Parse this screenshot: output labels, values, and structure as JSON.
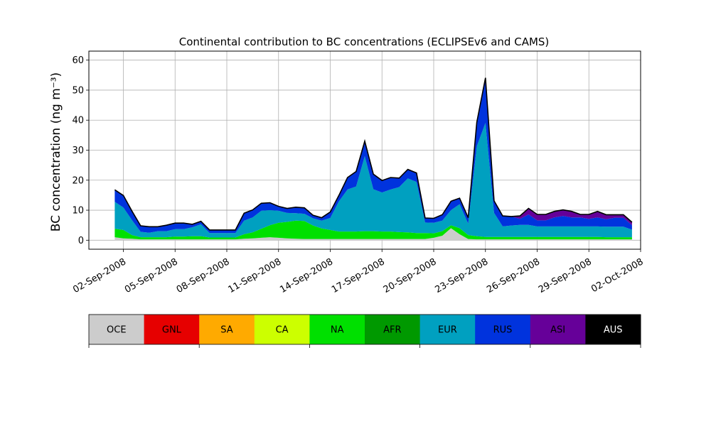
{
  "chart_data": {
    "type": "area",
    "title": "Continental contribution to BC concentrations (ECLIPSEv6 and CAMS)",
    "ylabel": "BC concentration (ng m⁻³)",
    "xlabel": "",
    "ylim": [
      -3,
      63
    ],
    "xlim": [
      "2008-08-31",
      "2008-10-02"
    ],
    "yticks": [
      0,
      10,
      20,
      30,
      40,
      50,
      60
    ],
    "xticks": [
      "02-Sep-2008",
      "05-Sep-2008",
      "08-Sep-2008",
      "11-Sep-2008",
      "14-Sep-2008",
      "17-Sep-2008",
      "20-Sep-2008",
      "23-Sep-2008",
      "26-Sep-2008",
      "29-Sep-2008",
      "02-Oct-2008"
    ],
    "xtick_dates": [
      "2008-09-02",
      "2008-09-05",
      "2008-09-08",
      "2008-09-11",
      "2008-09-14",
      "2008-09-17",
      "2008-09-20",
      "2008-09-23",
      "2008-09-26",
      "2008-09-29",
      "2008-10-02"
    ],
    "grid": true,
    "x": [
      "2008-09-01 12:00",
      "2008-09-02 00:00",
      "2008-09-02 12:00",
      "2008-09-03 00:00",
      "2008-09-03 12:00",
      "2008-09-04 00:00",
      "2008-09-04 12:00",
      "2008-09-05 00:00",
      "2008-09-05 12:00",
      "2008-09-06 00:00",
      "2008-09-06 12:00",
      "2008-09-07 00:00",
      "2008-09-07 12:00",
      "2008-09-08 00:00",
      "2008-09-08 12:00",
      "2008-09-09 00:00",
      "2008-09-09 12:00",
      "2008-09-10 00:00",
      "2008-09-10 12:00",
      "2008-09-11 00:00",
      "2008-09-11 12:00",
      "2008-09-12 00:00",
      "2008-09-12 12:00",
      "2008-09-13 00:00",
      "2008-09-13 12:00",
      "2008-09-14 00:00",
      "2008-09-14 12:00",
      "2008-09-15 00:00",
      "2008-09-15 12:00",
      "2008-09-16 00:00",
      "2008-09-16 12:00",
      "2008-09-17 00:00",
      "2008-09-17 12:00",
      "2008-09-18 00:00",
      "2008-09-18 12:00",
      "2008-09-19 00:00",
      "2008-09-19 12:00",
      "2008-09-20 00:00",
      "2008-09-20 12:00",
      "2008-09-21 00:00",
      "2008-09-21 12:00",
      "2008-09-22 00:00",
      "2008-09-22 12:00",
      "2008-09-23 00:00",
      "2008-09-23 12:00",
      "2008-09-24 00:00",
      "2008-09-24 12:00",
      "2008-09-25 00:00",
      "2008-09-25 12:00",
      "2008-09-26 00:00",
      "2008-09-26 12:00",
      "2008-09-27 00:00",
      "2008-09-27 12:00",
      "2008-09-28 00:00",
      "2008-09-28 12:00",
      "2008-09-29 00:00",
      "2008-09-29 12:00",
      "2008-09-30 00:00",
      "2008-09-30 12:00",
      "2008-10-01 00:00",
      "2008-10-01 12:00"
    ],
    "series": [
      {
        "name": "OCE",
        "color": "#cccccc",
        "values": [
          1.0,
          0.6,
          0.5,
          0.3,
          0.3,
          0.3,
          0.3,
          0.3,
          0.3,
          0.3,
          0.3,
          0.3,
          0.3,
          0.3,
          0.3,
          0.5,
          0.6,
          0.8,
          1.0,
          0.8,
          0.6,
          0.5,
          0.4,
          0.4,
          0.4,
          0.4,
          0.4,
          0.4,
          0.4,
          0.4,
          0.4,
          0.4,
          0.4,
          0.4,
          0.4,
          0.4,
          0.4,
          0.8,
          1.5,
          4.0,
          2.0,
          0.4,
          0.3,
          0.3,
          0.3,
          0.3,
          0.3,
          0.3,
          0.3,
          0.3,
          0.3,
          0.3,
          0.3,
          0.3,
          0.3,
          0.3,
          0.3,
          0.3,
          0.3,
          0.3,
          0.3
        ]
      },
      {
        "name": "GNL",
        "color": "#e60000",
        "values": [
          0,
          0,
          0,
          0,
          0,
          0,
          0,
          0,
          0,
          0,
          0,
          0,
          0,
          0,
          0,
          0,
          0,
          0,
          0,
          0,
          0,
          0,
          0,
          0,
          0,
          0,
          0,
          0,
          0,
          0,
          0,
          0,
          0,
          0,
          0,
          0,
          0,
          0,
          0,
          0,
          0,
          0,
          0,
          0,
          0,
          0,
          0,
          0,
          0,
          0,
          0,
          0,
          0,
          0,
          0,
          0,
          0,
          0,
          0,
          0,
          0
        ]
      },
      {
        "name": "SA",
        "color": "#ffaa00",
        "values": [
          0,
          0,
          0,
          0,
          0,
          0,
          0,
          0,
          0,
          0,
          0,
          0,
          0,
          0,
          0,
          0,
          0,
          0,
          0,
          0,
          0,
          0,
          0,
          0,
          0,
          0,
          0,
          0,
          0,
          0,
          0,
          0,
          0,
          0,
          0,
          0,
          0,
          0,
          0,
          0,
          0,
          0,
          0,
          0,
          0,
          0,
          0,
          0,
          0,
          0,
          0,
          0,
          0,
          0,
          0,
          0,
          0,
          0,
          0,
          0,
          0
        ]
      },
      {
        "name": "CA",
        "color": "#ccff00",
        "values": [
          0,
          0,
          0,
          0,
          0,
          0,
          0,
          0,
          0,
          0,
          0,
          0,
          0,
          0,
          0,
          0,
          0,
          0,
          0,
          0,
          0,
          0,
          0,
          0,
          0,
          0,
          0,
          0,
          0,
          0,
          0,
          0,
          0,
          0,
          0,
          0,
          0,
          0,
          0,
          0,
          0,
          0,
          0,
          0,
          0,
          0,
          0,
          0,
          0,
          0,
          0,
          0,
          0,
          0,
          0,
          0,
          0,
          0,
          0,
          0,
          0
        ]
      },
      {
        "name": "NA",
        "color": "#00e000",
        "values": [
          2.8,
          2.8,
          1.2,
          0.7,
          0.7,
          0.7,
          0.7,
          0.9,
          0.9,
          1.0,
          1.0,
          0.6,
          0.6,
          0.6,
          0.6,
          1.5,
          2.0,
          3.0,
          4.0,
          5.0,
          5.5,
          6.0,
          6.0,
          4.5,
          3.5,
          3.0,
          2.5,
          2.5,
          2.5,
          2.6,
          2.6,
          2.5,
          2.5,
          2.3,
          2.2,
          2.0,
          2.0,
          1.5,
          1.5,
          1.0,
          2.0,
          1.3,
          1.0,
          0.8,
          0.8,
          0.8,
          0.8,
          0.8,
          0.8,
          0.8,
          0.8,
          0.8,
          0.8,
          0.8,
          0.8,
          0.8,
          0.8,
          0.7,
          0.7,
          0.7,
          0.7
        ]
      },
      {
        "name": "AFR",
        "color": "#009900",
        "values": [
          0,
          0,
          0,
          0,
          0,
          0,
          0,
          0,
          0,
          0,
          0,
          0,
          0,
          0,
          0,
          0,
          0,
          0,
          0,
          0,
          0,
          0,
          0,
          0,
          0,
          0,
          0,
          0,
          0,
          0,
          0,
          0,
          0,
          0,
          0,
          0,
          0,
          0,
          0,
          0,
          0,
          0,
          0,
          0,
          0,
          0,
          0,
          0,
          0,
          0,
          0,
          0,
          0,
          0,
          0,
          0,
          0,
          0,
          0,
          0,
          0
        ]
      },
      {
        "name": "EUR",
        "color": "#00a0c0",
        "values": [
          9.0,
          7.5,
          5.0,
          1.8,
          1.5,
          2.0,
          2.0,
          2.5,
          2.5,
          3.0,
          4.0,
          1.5,
          1.5,
          1.5,
          1.5,
          4.5,
          5.0,
          6.0,
          5.0,
          4.0,
          3.0,
          2.5,
          2.4,
          2.4,
          2.6,
          4.0,
          10.0,
          14.0,
          15.0,
          25.0,
          14.0,
          13.0,
          14.0,
          15.0,
          18.0,
          17.0,
          3.5,
          3.5,
          3.5,
          5.0,
          8.0,
          3.8,
          30.0,
          38.0,
          8.0,
          3.5,
          3.8,
          4.0,
          4.0,
          3.5,
          3.5,
          3.5,
          3.5,
          3.5,
          3.5,
          3.5,
          3.5,
          3.5,
          3.5,
          3.5,
          2.5
        ]
      },
      {
        "name": "RUS",
        "color": "#0033dd",
        "values": [
          4.0,
          4.0,
          3.0,
          2.0,
          2.0,
          1.5,
          2.0,
          2.0,
          2.0,
          1.0,
          1.0,
          1.0,
          1.0,
          1.0,
          1.0,
          2.5,
          2.5,
          2.5,
          2.5,
          1.5,
          1.5,
          2.0,
          2.0,
          1.0,
          1.0,
          2.0,
          2.0,
          4.0,
          5.0,
          5.0,
          5.0,
          4.0,
          4.0,
          3.0,
          3.0,
          3.0,
          1.5,
          1.5,
          2.0,
          3.0,
          2.0,
          2.0,
          8.0,
          15.0,
          4.0,
          3.5,
          3.0,
          2.0,
          3.5,
          2.0,
          2.0,
          3.0,
          3.5,
          3.0,
          3.0,
          2.5,
          3.0,
          2.5,
          3.0,
          3.0,
          1.5
        ]
      },
      {
        "name": "ASI",
        "color": "#660099",
        "values": [
          0,
          0,
          0,
          0,
          0,
          0,
          0,
          0,
          0,
          0,
          0,
          0,
          0,
          0,
          0,
          0,
          0,
          0,
          0,
          0,
          0,
          0,
          0,
          0,
          0,
          0,
          0,
          0,
          0,
          0,
          0,
          0,
          0,
          0,
          0,
          0,
          0,
          0,
          0,
          0,
          0,
          0,
          0,
          0,
          0,
          0,
          0,
          1.0,
          2.0,
          2.0,
          2.0,
          2.0,
          2.0,
          2.0,
          1.0,
          1.5,
          2.0,
          1.5,
          1.0,
          1.0,
          1.0
        ]
      },
      {
        "name": "AUS",
        "color": "#000000",
        "values": [
          0,
          0,
          0,
          0,
          0,
          0,
          0,
          0,
          0,
          0,
          0,
          0,
          0,
          0,
          0,
          0,
          0,
          0,
          0,
          0,
          0,
          0,
          0,
          0,
          0,
          0,
          0,
          0,
          0,
          0,
          0,
          0,
          0,
          0,
          0,
          0,
          0,
          0,
          0,
          0,
          0,
          0,
          0,
          0,
          0,
          0,
          0,
          0,
          0,
          0,
          0,
          0,
          0,
          0,
          0,
          0,
          0,
          0,
          0,
          0,
          0
        ]
      }
    ],
    "legend_placement": "bottom (color bar)",
    "legend_text_colors": {
      "OCE": "#000000",
      "GNL": "#000000",
      "SA": "#000000",
      "CA": "#000000",
      "NA": "#000000",
      "AFR": "#000000",
      "EUR": "#000000",
      "RUS": "#000000",
      "ASI": "#000000",
      "AUS": "#ffffff"
    }
  }
}
